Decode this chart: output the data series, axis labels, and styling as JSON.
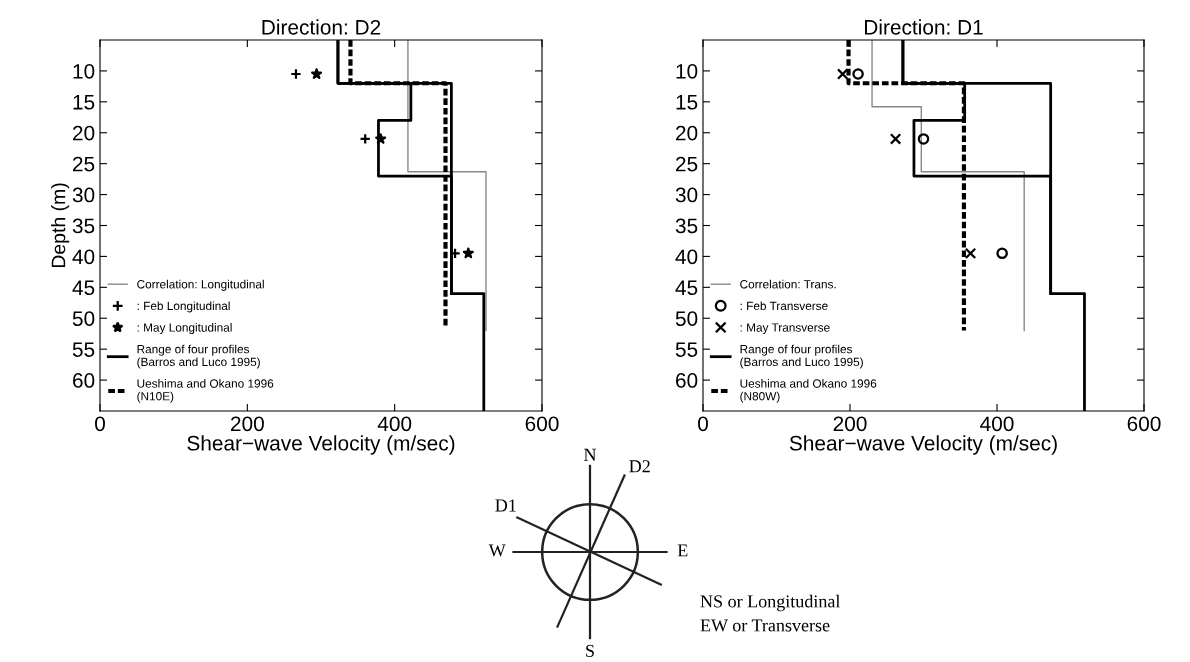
{
  "chart_data": [
    {
      "type": "line",
      "title": "Direction: D2",
      "xlabel": "Shear−wave Velocity (m/sec)",
      "ylabel": "Depth (m)",
      "xlim": [
        0,
        600
      ],
      "xticks": [
        0,
        200,
        400,
        600
      ],
      "ylim": [
        65,
        5
      ],
      "yticks": [
        10,
        15,
        20,
        25,
        30,
        35,
        40,
        45,
        50,
        55,
        60
      ],
      "grid": false,
      "legend": "bottom left",
      "series": [
        {
          "name": "Correlation: Longitudinal",
          "color": "#888888",
          "line_style": "solid",
          "x": [
            418,
            418,
            524,
            524
          ],
          "values": [
            5,
            26.3,
            26.3,
            52
          ]
        },
        {
          "name": ": Feb Longitudinal",
          "type": "scatter",
          "marker": "plus",
          "color": "#000000",
          "x": [
            266,
            360,
            482
          ],
          "values": [
            10.5,
            21,
            39.5
          ]
        },
        {
          "name": ": May Longitudinal",
          "type": "scatter",
          "marker": "star",
          "color": "#000000",
          "x": [
            294,
            381,
            500
          ],
          "values": [
            10.5,
            21,
            39.5
          ]
        },
        {
          "name": "Range of four profiles\n(Barros and Luco 1995)",
          "color": "#000000",
          "line_style": "solid",
          "x": [
            323,
            323,
            477,
            477,
            521,
            521
          ],
          "values": [
            5,
            12,
            12,
            46,
            46,
            65
          ]
        },
        {
          "color": "#000000",
          "line_style": "solid",
          "x": [
            323,
            323,
            422,
            422,
            378,
            378,
            477,
            477
          ],
          "values": [
            5,
            12,
            12,
            18,
            18,
            27,
            27,
            46
          ]
        },
        {
          "name": "Ueshima and Okano 1996\n(N10E)",
          "color": "#000000",
          "line_style": "dashed",
          "x": [
            340,
            340,
            469,
            469
          ],
          "values": [
            5,
            12,
            12,
            51.5
          ]
        }
      ]
    },
    {
      "type": "line",
      "title": "Direction: D1",
      "xlabel": "Shear−wave Velocity (m/sec)",
      "xlim": [
        0,
        600
      ],
      "xticks": [
        0,
        200,
        400,
        600
      ],
      "ylim": [
        65,
        5
      ],
      "yticks": [
        10,
        15,
        20,
        25,
        30,
        35,
        40,
        45,
        50,
        55,
        60
      ],
      "grid": false,
      "legend": "bottom left",
      "series": [
        {
          "name": "Correlation: Trans.",
          "color": "#888888",
          "line_style": "solid",
          "x": [
            230,
            230,
            297,
            297,
            437,
            437
          ],
          "values": [
            5,
            15.8,
            15.8,
            26.3,
            26.3,
            52
          ]
        },
        {
          "name": ": Feb Transverse",
          "type": "scatter",
          "marker": "circle",
          "color": "#000000",
          "x": [
            211,
            300,
            407
          ],
          "values": [
            10.5,
            21,
            39.5
          ]
        },
        {
          "name": ": May Transverse",
          "type": "scatter",
          "marker": "cross",
          "color": "#000000",
          "x": [
            190,
            262,
            364
          ],
          "values": [
            10.5,
            21,
            39.5
          ]
        },
        {
          "name": "Range of four profiles\n(Barros and Luco 1995)",
          "color": "#000000",
          "line_style": "solid",
          "x": [
            272,
            272,
            473,
            473,
            519,
            519
          ],
          "values": [
            5,
            12,
            12,
            46,
            46,
            65
          ]
        },
        {
          "color": "#000000",
          "line_style": "solid",
          "x": [
            272,
            272,
            356,
            356,
            287,
            287,
            473,
            473
          ],
          "values": [
            5,
            12,
            12,
            18,
            18,
            27,
            27,
            46
          ]
        },
        {
          "name": "Ueshima and Okano 1996\n(N80W)",
          "color": "#000000",
          "line_style": "dashed",
          "x": [
            198,
            198,
            355,
            355
          ],
          "values": [
            5,
            12,
            12,
            52
          ]
        }
      ]
    },
    {
      "type": "other",
      "annotations": [
        "N",
        "D2",
        "D1",
        "W",
        "E",
        "S",
        "NS or Longitudinal",
        "EW or Transverse"
      ]
    }
  ]
}
